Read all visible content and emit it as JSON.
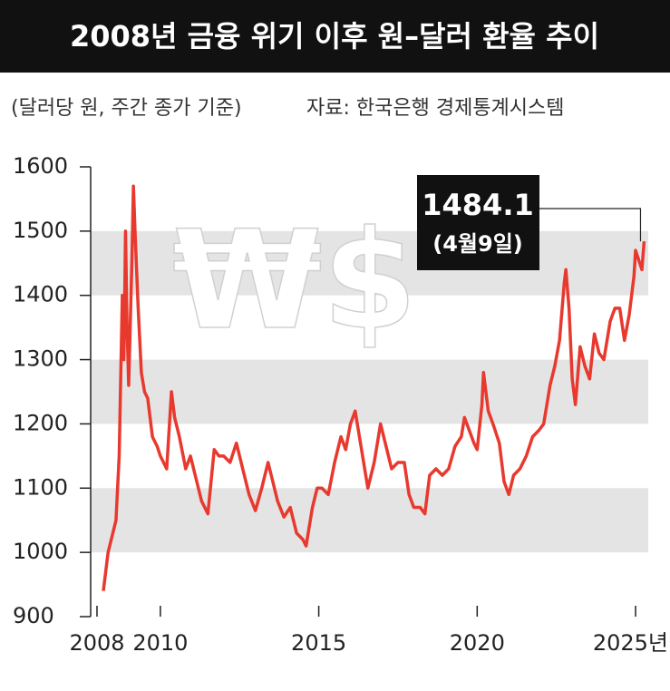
{
  "chart_data": {
    "type": "line",
    "title": "2008년 금융 위기 이후 원–달러 환율 추이",
    "subtitle": "(달러당 원, 주간 종가 기준)",
    "source": "자료: 한국은행 경제통계시스템",
    "watermark": "₩$",
    "color": "#e8392f",
    "x": [
      2008.2,
      2008.35,
      2008.5,
      2008.6,
      2008.7,
      2008.8,
      2008.85,
      2008.9,
      2008.95,
      2009.0,
      2009.1,
      2009.15,
      2009.2,
      2009.3,
      2009.4,
      2009.5,
      2009.6,
      2009.75,
      2009.9,
      2010.0,
      2010.2,
      2010.35,
      2010.45,
      2010.6,
      2010.8,
      2010.95,
      2011.1,
      2011.3,
      2011.5,
      2011.7,
      2011.85,
      2012.0,
      2012.2,
      2012.4,
      2012.6,
      2012.8,
      2013.0,
      2013.2,
      2013.4,
      2013.5,
      2013.7,
      2013.9,
      2014.1,
      2014.3,
      2014.5,
      2014.6,
      2014.8,
      2014.95,
      2015.1,
      2015.3,
      2015.5,
      2015.7,
      2015.85,
      2016.0,
      2016.15,
      2016.35,
      2016.55,
      2016.75,
      2016.95,
      2017.1,
      2017.3,
      2017.5,
      2017.7,
      2017.85,
      2018.0,
      2018.2,
      2018.35,
      2018.5,
      2018.7,
      2018.9,
      2019.1,
      2019.3,
      2019.5,
      2019.6,
      2019.75,
      2019.9,
      2020.0,
      2020.15,
      2020.2,
      2020.35,
      2020.5,
      2020.7,
      2020.85,
      2021.0,
      2021.15,
      2021.35,
      2021.55,
      2021.75,
      2021.95,
      2022.1,
      2022.3,
      2022.45,
      2022.6,
      2022.75,
      2022.8,
      2022.9,
      2023.0,
      2023.1,
      2023.25,
      2023.4,
      2023.55,
      2023.7,
      2023.85,
      2024.0,
      2024.2,
      2024.35,
      2024.5,
      2024.65,
      2024.8,
      2024.95,
      2025.0,
      2025.1,
      2025.2,
      2025.27
    ],
    "values": [
      940,
      1000,
      1030,
      1050,
      1150,
      1400,
      1300,
      1500,
      1350,
      1260,
      1450,
      1570,
      1500,
      1380,
      1280,
      1250,
      1240,
      1180,
      1165,
      1150,
      1130,
      1250,
      1210,
      1180,
      1130,
      1150,
      1120,
      1080,
      1060,
      1160,
      1150,
      1150,
      1140,
      1170,
      1130,
      1090,
      1065,
      1100,
      1140,
      1120,
      1080,
      1055,
      1070,
      1030,
      1020,
      1010,
      1070,
      1100,
      1100,
      1090,
      1140,
      1180,
      1160,
      1200,
      1220,
      1160,
      1100,
      1140,
      1200,
      1170,
      1130,
      1140,
      1140,
      1090,
      1070,
      1070,
      1060,
      1120,
      1130,
      1120,
      1130,
      1165,
      1180,
      1210,
      1190,
      1170,
      1160,
      1230,
      1280,
      1220,
      1200,
      1170,
      1110,
      1090,
      1120,
      1130,
      1150,
      1180,
      1190,
      1200,
      1260,
      1290,
      1330,
      1420,
      1440,
      1380,
      1270,
      1230,
      1320,
      1290,
      1270,
      1340,
      1310,
      1300,
      1360,
      1380,
      1380,
      1330,
      1370,
      1430,
      1470,
      1455,
      1440,
      1484.1
    ],
    "annotation": {
      "value": 1484.1,
      "date": "(4월9일)"
    },
    "xlim": [
      2007.8,
      2025.4
    ],
    "xticks": [
      2008,
      2010,
      2015,
      2020,
      {
        "value": 2025,
        "label": "2025년"
      }
    ],
    "ylim": [
      900,
      1600
    ],
    "yticks": [
      900,
      1000,
      1100,
      1200,
      1300,
      1400,
      1500,
      1600
    ]
  }
}
